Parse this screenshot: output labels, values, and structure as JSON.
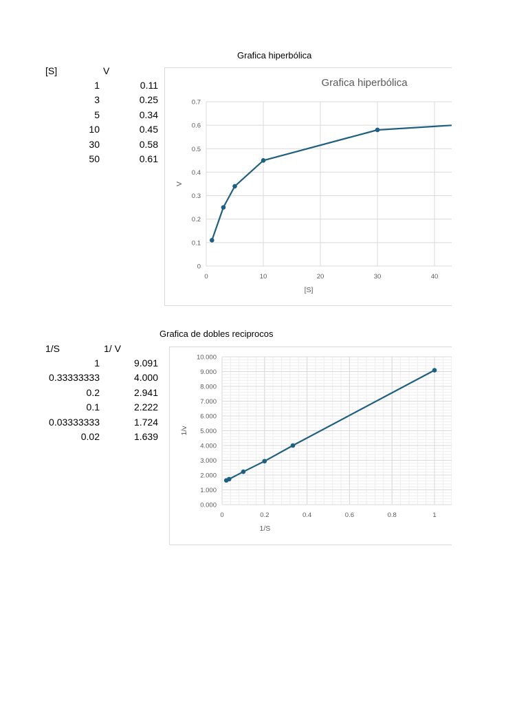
{
  "table1": {
    "title": "Grafica hiperbólica",
    "headers": [
      "[S]",
      "V"
    ],
    "rows": [
      [
        "1",
        "0.11"
      ],
      [
        "3",
        "0.25"
      ],
      [
        "5",
        "0.34"
      ],
      [
        "10",
        "0.45"
      ],
      [
        "30",
        "0.58"
      ],
      [
        "50",
        "0.61"
      ]
    ]
  },
  "table2": {
    "title": "Grafica de dobles reciprocos",
    "headers": [
      "1/S",
      "1/ V"
    ],
    "rows": [
      [
        "1",
        "9.091"
      ],
      [
        "0.33333333",
        "4.000"
      ],
      [
        "0.2",
        "2.941"
      ],
      [
        "0.1",
        "2.222"
      ],
      [
        "0.03333333",
        "1.724"
      ],
      [
        "0.02",
        "1.639"
      ]
    ]
  },
  "colors": {
    "series": "#1f5f7f",
    "grid": "#d9d9d9",
    "minor_grid": "#eeeeee",
    "axis_text": "#595959",
    "border": "#d9d9d9"
  },
  "chart_data": [
    {
      "type": "line",
      "title": "Grafica hiperbólica",
      "xlabel": "[S]",
      "ylabel": "V",
      "x": [
        1,
        3,
        5,
        10,
        30,
        50
      ],
      "series": [
        {
          "name": "V",
          "values": [
            0.11,
            0.25,
            0.34,
            0.45,
            0.58,
            0.61
          ]
        }
      ],
      "xlim": [
        0,
        60
      ],
      "ylim": [
        0,
        0.7
      ],
      "xticks": [
        "0",
        "10",
        "20",
        "30",
        "40"
      ],
      "yticks": [
        "0",
        "0.1",
        "0.2",
        "0.3",
        "0.4",
        "0.5",
        "0.6",
        "0.7"
      ],
      "grid": true,
      "markers": true,
      "legend": "none"
    },
    {
      "type": "line",
      "title": "",
      "xlabel": "1/S",
      "ylabel": "1/v",
      "x": [
        1,
        0.33333333,
        0.2,
        0.1,
        0.03333333,
        0.02
      ],
      "series": [
        {
          "name": "1/V",
          "values": [
            9.091,
            4.0,
            2.941,
            2.222,
            1.724,
            1.639
          ]
        }
      ],
      "xlim": [
        0,
        1.2
      ],
      "ylim": [
        0,
        10
      ],
      "xticks": [
        "0",
        "0.2",
        "0.4",
        "0.6",
        "0.8",
        "1"
      ],
      "yticks": [
        "0.000",
        "1.000",
        "2.000",
        "3.000",
        "4.000",
        "5.000",
        "6.000",
        "7.000",
        "8.000",
        "9.000",
        "10.000"
      ],
      "grid": true,
      "minor_grid": true,
      "markers": true,
      "legend": "none"
    }
  ]
}
